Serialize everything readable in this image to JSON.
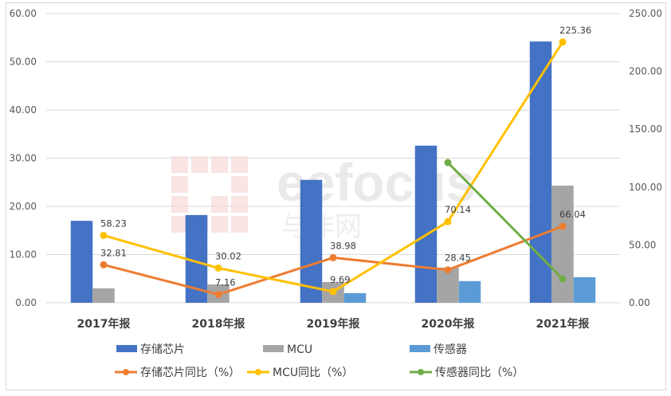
{
  "watermark": {
    "text": "eefocus",
    "subtext": "与非网"
  },
  "chart_data": {
    "type": "bar+line",
    "title": "",
    "categories": [
      "2017年报",
      "2018年报",
      "2019年报",
      "2020年报",
      "2021年报"
    ],
    "y_left": {
      "min": 0,
      "max": 60,
      "ticks": [
        "0.00",
        "10.00",
        "20.00",
        "30.00",
        "40.00",
        "50.00",
        "60.00"
      ]
    },
    "y_right": {
      "min": 0,
      "max": 250,
      "ticks": [
        "0.00",
        "50.00",
        "100.00",
        "150.00",
        "200.00",
        "250.00"
      ]
    },
    "grid": true,
    "legend_position": "bottom",
    "bar_series": [
      {
        "name": "存储芯片",
        "color": "#4472C4",
        "axis": "left",
        "values": [
          17.0,
          18.2,
          25.5,
          32.6,
          54.2
        ]
      },
      {
        "name": "MCU",
        "color": "#A5A5A5",
        "axis": "left",
        "values": [
          3.0,
          3.8,
          4.3,
          7.3,
          24.3
        ]
      },
      {
        "name": "传感器",
        "color": "#5B9BD5",
        "axis": "left",
        "values": [
          null,
          null,
          2.0,
          4.5,
          5.3
        ]
      }
    ],
    "line_series": [
      {
        "name": "存储芯片同比（%）",
        "color": "#ED7D31",
        "axis": "right",
        "values": [
          32.81,
          7.16,
          38.98,
          28.45,
          66.04
        ],
        "labels": [
          "32.81",
          "7.16",
          "38.98",
          "28.45",
          "66.04"
        ]
      },
      {
        "name": "MCU同比（%）",
        "color": "#FFC000",
        "axis": "right",
        "values": [
          58.23,
          30.02,
          9.69,
          70.14,
          225.36
        ],
        "labels": [
          "58.23",
          "30.02",
          "9.69",
          "70.14",
          "225.36"
        ]
      },
      {
        "name": "传感器同比（%）",
        "color": "#70AD47",
        "axis": "right",
        "values": [
          null,
          null,
          null,
          121.2,
          20.7
        ],
        "labels": []
      }
    ]
  }
}
